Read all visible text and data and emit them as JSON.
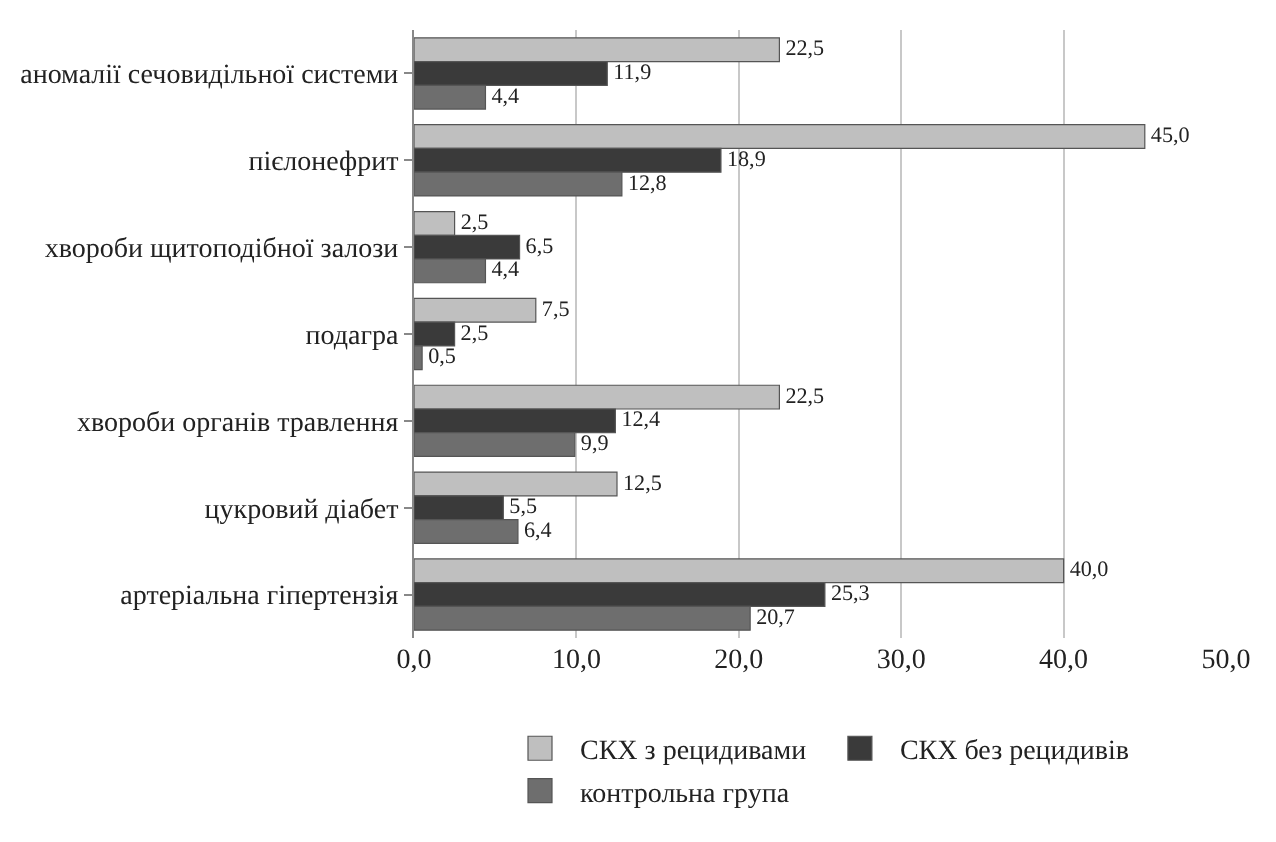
{
  "chart_data": {
    "type": "bar",
    "orientation": "horizontal",
    "categories": [
      "аномалії сечовидільної системи",
      "пієлонефрит",
      "хвороби щитоподібної залози",
      "подагра",
      "хвороби органів травлення",
      "цукровий діабет",
      "артеріальна гіпертензія"
    ],
    "series": [
      {
        "name": "СКХ з рецидивами",
        "color": "#bfbfbf",
        "values": [
          22.5,
          45.0,
          2.5,
          7.5,
          22.5,
          12.5,
          40.0
        ],
        "value_labels": [
          "22,5",
          "45,0",
          "2,5",
          "7,5",
          "22,5",
          "12,5",
          "40,0"
        ]
      },
      {
        "name": "СКХ без рецидивів",
        "color": "#3a3a3a",
        "values": [
          11.9,
          18.9,
          6.5,
          2.5,
          12.4,
          5.5,
          25.3
        ],
        "value_labels": [
          "11,9",
          "18,9",
          "6,5",
          "2,5",
          "12,4",
          "5,5",
          "25,3"
        ]
      },
      {
        "name": "контрольна група",
        "color": "#6e6e6e",
        "values": [
          4.4,
          12.8,
          4.4,
          0.5,
          9.9,
          6.4,
          20.7
        ],
        "value_labels": [
          "4,4",
          "12,8",
          "4,4",
          "0,5",
          "9,9",
          "6,4",
          "20,7"
        ]
      }
    ],
    "xlim": [
      0,
      50
    ],
    "xticks": [
      {
        "value": 0,
        "label": "0,0"
      },
      {
        "value": 10,
        "label": "10,0"
      },
      {
        "value": 20,
        "label": "20,0"
      },
      {
        "value": 30,
        "label": "30,0"
      },
      {
        "value": 40,
        "label": "40,0"
      },
      {
        "value": 50,
        "label": "50,0"
      }
    ],
    "grid": "x",
    "legend": "bottom"
  }
}
